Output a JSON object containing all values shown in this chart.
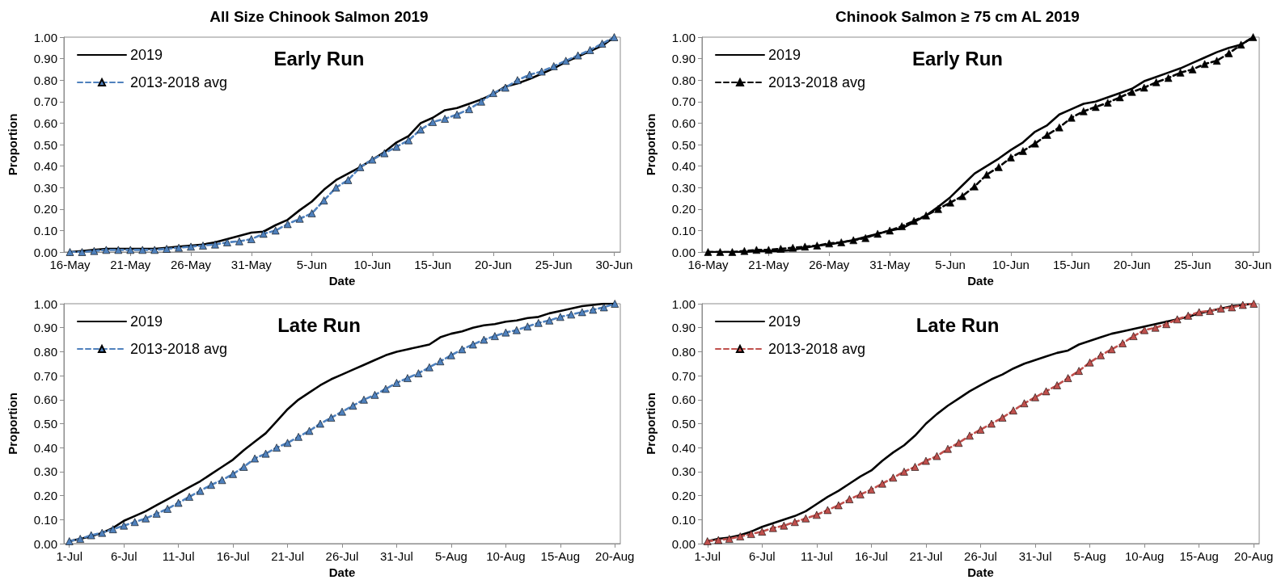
{
  "chart_data": [
    {
      "type": "line",
      "title": "All Size Chinook Salmon 2019",
      "xlabel": "Date",
      "ylabel": "Proportion",
      "annotations": [
        "Early Run"
      ],
      "legend": "top left",
      "grid": false,
      "x": [
        "2019-05-16",
        "2019-05-17",
        "2019-05-18",
        "2019-05-19",
        "2019-05-20",
        "2019-05-21",
        "2019-05-22",
        "2019-05-23",
        "2019-05-24",
        "2019-05-25",
        "2019-05-26",
        "2019-05-27",
        "2019-05-28",
        "2019-05-29",
        "2019-05-30",
        "2019-05-31",
        "2019-06-01",
        "2019-06-02",
        "2019-06-03",
        "2019-06-04",
        "2019-06-05",
        "2019-06-06",
        "2019-06-07",
        "2019-06-08",
        "2019-06-09",
        "2019-06-10",
        "2019-06-11",
        "2019-06-12",
        "2019-06-13",
        "2019-06-14",
        "2019-06-15",
        "2019-06-16",
        "2019-06-17",
        "2019-06-18",
        "2019-06-19",
        "2019-06-20",
        "2019-06-21",
        "2019-06-22",
        "2019-06-23",
        "2019-06-24",
        "2019-06-25",
        "2019-06-26",
        "2019-06-27",
        "2019-06-28",
        "2019-06-29",
        "2019-06-30"
      ],
      "xlim": [
        "2019-05-15T12:00",
        "2019-06-30T12:00"
      ],
      "xticks": [
        {
          "value": "2019-05-16",
          "label": "16-May"
        },
        {
          "value": "2019-05-21",
          "label": "21-May"
        },
        {
          "value": "2019-05-26",
          "label": "26-May"
        },
        {
          "value": "2019-05-31",
          "label": "31-May"
        },
        {
          "value": "2019-06-05",
          "label": "5-Jun"
        },
        {
          "value": "2019-06-10",
          "label": "10-Jun"
        },
        {
          "value": "2019-06-15",
          "label": "15-Jun"
        },
        {
          "value": "2019-06-20",
          "label": "20-Jun"
        },
        {
          "value": "2019-06-25",
          "label": "25-Jun"
        },
        {
          "value": "2019-06-30",
          "label": "30-Jun"
        }
      ],
      "ylim": [
        0,
        1
      ],
      "yticks": [
        {
          "value": 0,
          "label": "0.00"
        },
        {
          "value": 0.1,
          "label": "0.10"
        },
        {
          "value": 0.2,
          "label": "0.20"
        },
        {
          "value": 0.3,
          "label": "0.30"
        },
        {
          "value": 0.4,
          "label": "0.40"
        },
        {
          "value": 0.5,
          "label": "0.50"
        },
        {
          "value": 0.6,
          "label": "0.60"
        },
        {
          "value": 0.7,
          "label": "0.70"
        },
        {
          "value": 0.8,
          "label": "0.80"
        },
        {
          "value": 0.9,
          "label": "0.90"
        },
        {
          "value": 1,
          "label": "1.00"
        }
      ],
      "series": [
        {
          "name": "2019",
          "color": "#000000",
          "marker": "none",
          "line_style": "solid",
          "values": [
            0,
            0.005,
            0.01,
            0.015,
            0.015,
            0.015,
            0.015,
            0.015,
            0.02,
            0.025,
            0.03,
            0.035,
            0.045,
            0.06,
            0.075,
            0.09,
            0.095,
            0.125,
            0.15,
            0.195,
            0.235,
            0.29,
            0.335,
            0.365,
            0.395,
            0.43,
            0.465,
            0.51,
            0.54,
            0.6,
            0.625,
            0.66,
            0.67,
            0.69,
            0.71,
            0.735,
            0.77,
            0.785,
            0.805,
            0.83,
            0.855,
            0.885,
            0.91,
            0.935,
            0.96,
            1
          ]
        },
        {
          "name": "2013-2018 avg",
          "color": "#4f81bd",
          "marker": "triangle",
          "line_style": "dashed",
          "values": [
            0,
            0,
            0.005,
            0.01,
            0.01,
            0.01,
            0.01,
            0.01,
            0.015,
            0.02,
            0.025,
            0.03,
            0.035,
            0.045,
            0.05,
            0.06,
            0.085,
            0.1,
            0.13,
            0.155,
            0.18,
            0.24,
            0.3,
            0.335,
            0.395,
            0.43,
            0.46,
            0.49,
            0.52,
            0.57,
            0.605,
            0.62,
            0.64,
            0.665,
            0.7,
            0.74,
            0.765,
            0.8,
            0.825,
            0.84,
            0.865,
            0.89,
            0.915,
            0.94,
            0.97,
            1
          ]
        }
      ]
    },
    {
      "type": "line",
      "title": "Chinook Salmon ≥ 75 cm AL 2019",
      "xlabel": "Date",
      "ylabel": "Proportion",
      "annotations": [
        "Early Run"
      ],
      "legend": "top left",
      "grid": false,
      "x": [
        "2019-05-16",
        "2019-05-17",
        "2019-05-18",
        "2019-05-19",
        "2019-05-20",
        "2019-05-21",
        "2019-05-22",
        "2019-05-23",
        "2019-05-24",
        "2019-05-25",
        "2019-05-26",
        "2019-05-27",
        "2019-05-28",
        "2019-05-29",
        "2019-05-30",
        "2019-05-31",
        "2019-06-01",
        "2019-06-02",
        "2019-06-03",
        "2019-06-04",
        "2019-06-05",
        "2019-06-06",
        "2019-06-07",
        "2019-06-08",
        "2019-06-09",
        "2019-06-10",
        "2019-06-11",
        "2019-06-12",
        "2019-06-13",
        "2019-06-14",
        "2019-06-15",
        "2019-06-16",
        "2019-06-17",
        "2019-06-18",
        "2019-06-19",
        "2019-06-20",
        "2019-06-21",
        "2019-06-22",
        "2019-06-23",
        "2019-06-24",
        "2019-06-25",
        "2019-06-26",
        "2019-06-27",
        "2019-06-28",
        "2019-06-29",
        "2019-06-30"
      ],
      "xlim": [
        "2019-05-15T12:00",
        "2019-06-30T12:00"
      ],
      "xticks": [
        {
          "value": "2019-05-16",
          "label": "16-May"
        },
        {
          "value": "2019-05-21",
          "label": "21-May"
        },
        {
          "value": "2019-05-26",
          "label": "26-May"
        },
        {
          "value": "2019-05-31",
          "label": "31-May"
        },
        {
          "value": "2019-06-05",
          "label": "5-Jun"
        },
        {
          "value": "2019-06-10",
          "label": "10-Jun"
        },
        {
          "value": "2019-06-15",
          "label": "15-Jun"
        },
        {
          "value": "2019-06-20",
          "label": "20-Jun"
        },
        {
          "value": "2019-06-25",
          "label": "25-Jun"
        },
        {
          "value": "2019-06-30",
          "label": "30-Jun"
        }
      ],
      "ylim": [
        0,
        1
      ],
      "yticks": [
        {
          "value": 0,
          "label": "0.00"
        },
        {
          "value": 0.1,
          "label": "0.10"
        },
        {
          "value": 0.2,
          "label": "0.20"
        },
        {
          "value": 0.3,
          "label": "0.30"
        },
        {
          "value": 0.4,
          "label": "0.40"
        },
        {
          "value": 0.5,
          "label": "0.50"
        },
        {
          "value": 0.6,
          "label": "0.60"
        },
        {
          "value": 0.7,
          "label": "0.70"
        },
        {
          "value": 0.8,
          "label": "0.80"
        },
        {
          "value": 0.9,
          "label": "0.90"
        },
        {
          "value": 1,
          "label": "1.00"
        }
      ],
      "series": [
        {
          "name": "2019",
          "color": "#000000",
          "marker": "none",
          "line_style": "solid",
          "values": [
            0,
            0,
            0,
            0,
            0.005,
            0.005,
            0.005,
            0.01,
            0.02,
            0.03,
            0.035,
            0.045,
            0.055,
            0.07,
            0.085,
            0.1,
            0.11,
            0.14,
            0.17,
            0.21,
            0.255,
            0.31,
            0.365,
            0.4,
            0.435,
            0.475,
            0.51,
            0.56,
            0.59,
            0.64,
            0.665,
            0.69,
            0.7,
            0.72,
            0.74,
            0.76,
            0.795,
            0.815,
            0.835,
            0.855,
            0.88,
            0.905,
            0.93,
            0.95,
            0.965,
            1
          ]
        },
        {
          "name": "2013-2018 avg",
          "color": "#000000",
          "marker": "triangle",
          "line_style": "dashed",
          "values": [
            0,
            0,
            0,
            0.005,
            0.01,
            0.01,
            0.015,
            0.02,
            0.025,
            0.03,
            0.04,
            0.045,
            0.055,
            0.065,
            0.085,
            0.1,
            0.12,
            0.145,
            0.17,
            0.2,
            0.23,
            0.26,
            0.305,
            0.36,
            0.395,
            0.44,
            0.47,
            0.505,
            0.545,
            0.58,
            0.625,
            0.655,
            0.675,
            0.695,
            0.72,
            0.745,
            0.765,
            0.79,
            0.81,
            0.835,
            0.85,
            0.875,
            0.89,
            0.925,
            0.965,
            1
          ]
        }
      ]
    },
    {
      "type": "line",
      "xlabel": "Date",
      "ylabel": "Proportion",
      "annotations": [
        "Late Run"
      ],
      "legend": "top left",
      "grid": false,
      "x": [
        "2019-07-01",
        "2019-07-02",
        "2019-07-03",
        "2019-07-04",
        "2019-07-05",
        "2019-07-06",
        "2019-07-07",
        "2019-07-08",
        "2019-07-09",
        "2019-07-10",
        "2019-07-11",
        "2019-07-12",
        "2019-07-13",
        "2019-07-14",
        "2019-07-15",
        "2019-07-16",
        "2019-07-17",
        "2019-07-18",
        "2019-07-19",
        "2019-07-20",
        "2019-07-21",
        "2019-07-22",
        "2019-07-23",
        "2019-07-24",
        "2019-07-25",
        "2019-07-26",
        "2019-07-27",
        "2019-07-28",
        "2019-07-29",
        "2019-07-30",
        "2019-07-31",
        "2019-08-01",
        "2019-08-02",
        "2019-08-03",
        "2019-08-04",
        "2019-08-05",
        "2019-08-06",
        "2019-08-07",
        "2019-08-08",
        "2019-08-09",
        "2019-08-10",
        "2019-08-11",
        "2019-08-12",
        "2019-08-13",
        "2019-08-14",
        "2019-08-15",
        "2019-08-16",
        "2019-08-17",
        "2019-08-18",
        "2019-08-19",
        "2019-08-20"
      ],
      "xlim": [
        "2019-06-30T12:00",
        "2019-08-20T12:00"
      ],
      "xticks": [
        {
          "value": "2019-07-01",
          "label": "1-Jul"
        },
        {
          "value": "2019-07-06",
          "label": "6-Jul"
        },
        {
          "value": "2019-07-11",
          "label": "11-Jul"
        },
        {
          "value": "2019-07-16",
          "label": "16-Jul"
        },
        {
          "value": "2019-07-21",
          "label": "21-Jul"
        },
        {
          "value": "2019-07-26",
          "label": "26-Jul"
        },
        {
          "value": "2019-07-31",
          "label": "31-Jul"
        },
        {
          "value": "2019-08-05",
          "label": "5-Aug"
        },
        {
          "value": "2019-08-10",
          "label": "10-Aug"
        },
        {
          "value": "2019-08-15",
          "label": "15-Aug"
        },
        {
          "value": "2019-08-20",
          "label": "20-Aug"
        }
      ],
      "ylim": [
        0,
        1
      ],
      "yticks": [
        {
          "value": 0,
          "label": "0.00"
        },
        {
          "value": 0.1,
          "label": "0.10"
        },
        {
          "value": 0.2,
          "label": "0.20"
        },
        {
          "value": 0.3,
          "label": "0.30"
        },
        {
          "value": 0.4,
          "label": "0.40"
        },
        {
          "value": 0.5,
          "label": "0.50"
        },
        {
          "value": 0.6,
          "label": "0.60"
        },
        {
          "value": 0.7,
          "label": "0.70"
        },
        {
          "value": 0.8,
          "label": "0.80"
        },
        {
          "value": 0.9,
          "label": "0.90"
        },
        {
          "value": 1,
          "label": "1.00"
        }
      ],
      "series": [
        {
          "name": "2019",
          "color": "#000000",
          "marker": "none",
          "line_style": "solid",
          "values": [
            0.01,
            0.02,
            0.03,
            0.045,
            0.065,
            0.095,
            0.115,
            0.135,
            0.16,
            0.185,
            0.21,
            0.235,
            0.26,
            0.29,
            0.32,
            0.35,
            0.39,
            0.425,
            0.46,
            0.51,
            0.56,
            0.6,
            0.63,
            0.66,
            0.685,
            0.705,
            0.725,
            0.745,
            0.765,
            0.785,
            0.8,
            0.81,
            0.82,
            0.83,
            0.86,
            0.875,
            0.885,
            0.9,
            0.91,
            0.915,
            0.925,
            0.93,
            0.94,
            0.945,
            0.96,
            0.97,
            0.98,
            0.99,
            0.995,
            1,
            1
          ]
        },
        {
          "name": "2013-2018 avg",
          "color": "#4f81bd",
          "marker": "triangle",
          "line_style": "dashed",
          "values": [
            0.01,
            0.02,
            0.035,
            0.045,
            0.06,
            0.075,
            0.09,
            0.105,
            0.125,
            0.145,
            0.17,
            0.195,
            0.22,
            0.245,
            0.265,
            0.29,
            0.32,
            0.355,
            0.375,
            0.4,
            0.42,
            0.445,
            0.47,
            0.5,
            0.525,
            0.55,
            0.575,
            0.6,
            0.62,
            0.645,
            0.67,
            0.69,
            0.71,
            0.735,
            0.76,
            0.785,
            0.81,
            0.83,
            0.85,
            0.865,
            0.88,
            0.89,
            0.905,
            0.92,
            0.93,
            0.945,
            0.955,
            0.965,
            0.975,
            0.985,
            1
          ]
        }
      ]
    },
    {
      "type": "line",
      "xlabel": "Date",
      "ylabel": "Proportion",
      "annotations": [
        "Late Run"
      ],
      "legend": "top left",
      "grid": false,
      "x": [
        "2019-07-01",
        "2019-07-02",
        "2019-07-03",
        "2019-07-04",
        "2019-07-05",
        "2019-07-06",
        "2019-07-07",
        "2019-07-08",
        "2019-07-09",
        "2019-07-10",
        "2019-07-11",
        "2019-07-12",
        "2019-07-13",
        "2019-07-14",
        "2019-07-15",
        "2019-07-16",
        "2019-07-17",
        "2019-07-18",
        "2019-07-19",
        "2019-07-20",
        "2019-07-21",
        "2019-07-22",
        "2019-07-23",
        "2019-07-24",
        "2019-07-25",
        "2019-07-26",
        "2019-07-27",
        "2019-07-28",
        "2019-07-29",
        "2019-07-30",
        "2019-07-31",
        "2019-08-01",
        "2019-08-02",
        "2019-08-03",
        "2019-08-04",
        "2019-08-05",
        "2019-08-06",
        "2019-08-07",
        "2019-08-08",
        "2019-08-09",
        "2019-08-10",
        "2019-08-11",
        "2019-08-12",
        "2019-08-13",
        "2019-08-14",
        "2019-08-15",
        "2019-08-16",
        "2019-08-17",
        "2019-08-18",
        "2019-08-19",
        "2019-08-20"
      ],
      "xlim": [
        "2019-06-30T12:00",
        "2019-08-20T12:00"
      ],
      "xticks": [
        {
          "value": "2019-07-01",
          "label": "1-Jul"
        },
        {
          "value": "2019-07-06",
          "label": "6-Jul"
        },
        {
          "value": "2019-07-11",
          "label": "11-Jul"
        },
        {
          "value": "2019-07-16",
          "label": "16-Jul"
        },
        {
          "value": "2019-07-21",
          "label": "21-Jul"
        },
        {
          "value": "2019-07-26",
          "label": "26-Jul"
        },
        {
          "value": "2019-07-31",
          "label": "31-Jul"
        },
        {
          "value": "2019-08-05",
          "label": "5-Aug"
        },
        {
          "value": "2019-08-10",
          "label": "10-Aug"
        },
        {
          "value": "2019-08-15",
          "label": "15-Aug"
        },
        {
          "value": "2019-08-20",
          "label": "20-Aug"
        }
      ],
      "ylim": [
        0,
        1
      ],
      "yticks": [
        {
          "value": 0,
          "label": "0.00"
        },
        {
          "value": 0.1,
          "label": "0.10"
        },
        {
          "value": 0.2,
          "label": "0.20"
        },
        {
          "value": 0.3,
          "label": "0.30"
        },
        {
          "value": 0.4,
          "label": "0.40"
        },
        {
          "value": 0.5,
          "label": "0.50"
        },
        {
          "value": 0.6,
          "label": "0.60"
        },
        {
          "value": 0.7,
          "label": "0.70"
        },
        {
          "value": 0.8,
          "label": "0.80"
        },
        {
          "value": 0.9,
          "label": "0.90"
        },
        {
          "value": 1,
          "label": "1.00"
        }
      ],
      "series": [
        {
          "name": "2019",
          "color": "#000000",
          "marker": "none",
          "line_style": "solid",
          "values": [
            0.01,
            0.02,
            0.025,
            0.035,
            0.05,
            0.07,
            0.085,
            0.1,
            0.115,
            0.135,
            0.165,
            0.195,
            0.22,
            0.25,
            0.28,
            0.305,
            0.345,
            0.38,
            0.41,
            0.45,
            0.5,
            0.54,
            0.575,
            0.605,
            0.635,
            0.66,
            0.685,
            0.705,
            0.73,
            0.75,
            0.765,
            0.78,
            0.795,
            0.805,
            0.83,
            0.845,
            0.86,
            0.875,
            0.885,
            0.895,
            0.905,
            0.915,
            0.925,
            0.935,
            0.945,
            0.96,
            0.97,
            0.98,
            0.99,
            0.995,
            1
          ]
        },
        {
          "name": "2013-2018 avg",
          "color": "#c0504d",
          "marker": "triangle",
          "line_style": "dashed",
          "values": [
            0.01,
            0.015,
            0.02,
            0.03,
            0.04,
            0.05,
            0.065,
            0.075,
            0.09,
            0.105,
            0.12,
            0.14,
            0.16,
            0.185,
            0.205,
            0.225,
            0.25,
            0.275,
            0.3,
            0.32,
            0.345,
            0.365,
            0.395,
            0.42,
            0.45,
            0.475,
            0.5,
            0.525,
            0.555,
            0.585,
            0.61,
            0.635,
            0.66,
            0.69,
            0.72,
            0.755,
            0.785,
            0.81,
            0.835,
            0.865,
            0.89,
            0.9,
            0.915,
            0.935,
            0.95,
            0.965,
            0.97,
            0.98,
            0.985,
            0.995,
            1
          ]
        }
      ]
    }
  ]
}
